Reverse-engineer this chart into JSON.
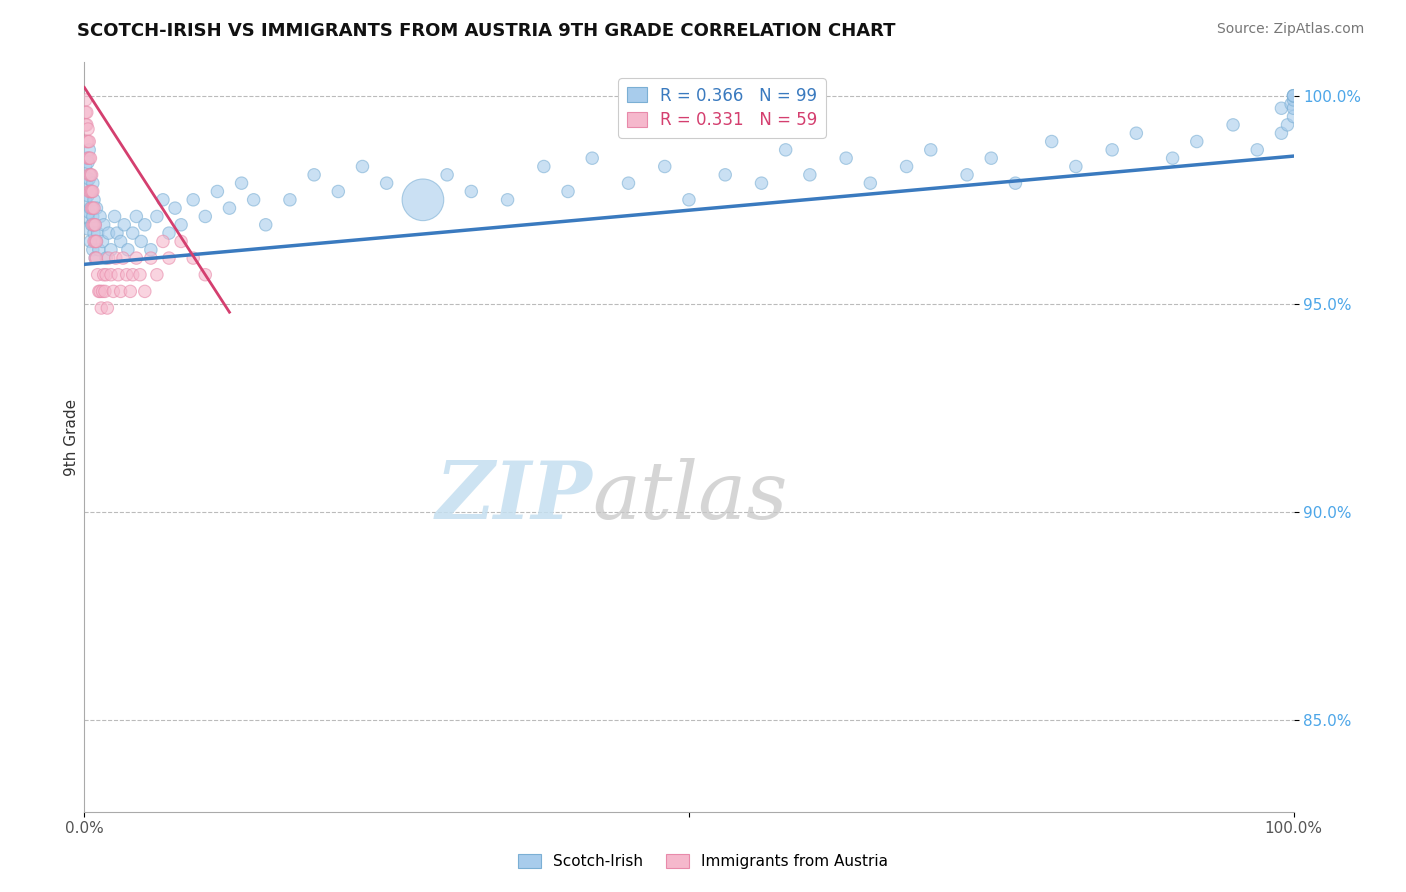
{
  "title": "SCOTCH-IRISH VS IMMIGRANTS FROM AUSTRIA 9TH GRADE CORRELATION CHART",
  "source": "Source: ZipAtlas.com",
  "ylabel": "9th Grade",
  "xlim": [
    0,
    1
  ],
  "ylim": [
    0.828,
    1.008
  ],
  "yticks": [
    0.85,
    0.9,
    0.95,
    1.0
  ],
  "ytick_labels": [
    "85.0%",
    "90.0%",
    "95.0%",
    "100.0%"
  ],
  "blue_R": 0.366,
  "blue_N": 99,
  "pink_R": 0.331,
  "pink_N": 59,
  "blue_color": "#a8ccec",
  "blue_edge_color": "#7bafd4",
  "blue_line_color": "#3a7abf",
  "pink_color": "#f5b8cc",
  "pink_edge_color": "#e88aaa",
  "pink_line_color": "#d43f6f",
  "blue_label": "Scotch-Irish",
  "pink_label": "Immigrants from Austria",
  "background_color": "#ffffff",
  "blue_x": [
    0.001,
    0.001,
    0.002,
    0.002,
    0.002,
    0.003,
    0.003,
    0.003,
    0.004,
    0.004,
    0.004,
    0.005,
    0.005,
    0.005,
    0.006,
    0.006,
    0.007,
    0.007,
    0.007,
    0.008,
    0.008,
    0.009,
    0.009,
    0.01,
    0.01,
    0.011,
    0.012,
    0.013,
    0.015,
    0.016,
    0.018,
    0.02,
    0.022,
    0.025,
    0.027,
    0.03,
    0.033,
    0.036,
    0.04,
    0.043,
    0.047,
    0.05,
    0.055,
    0.06,
    0.065,
    0.07,
    0.075,
    0.08,
    0.09,
    0.1,
    0.11,
    0.12,
    0.13,
    0.14,
    0.15,
    0.17,
    0.19,
    0.21,
    0.23,
    0.25,
    0.28,
    0.3,
    0.32,
    0.35,
    0.38,
    0.4,
    0.42,
    0.45,
    0.48,
    0.5,
    0.53,
    0.56,
    0.58,
    0.6,
    0.63,
    0.65,
    0.68,
    0.7,
    0.73,
    0.75,
    0.77,
    0.8,
    0.82,
    0.85,
    0.87,
    0.9,
    0.92,
    0.95,
    0.97,
    0.99,
    0.99,
    0.995,
    0.998,
    1.0,
    1.0,
    1.0,
    1.0,
    1.0,
    1.0
  ],
  "blue_y": [
    0.975,
    0.983,
    0.971,
    0.979,
    0.985,
    0.968,
    0.976,
    0.984,
    0.972,
    0.98,
    0.987,
    0.965,
    0.973,
    0.981,
    0.969,
    0.977,
    0.963,
    0.971,
    0.979,
    0.967,
    0.975,
    0.961,
    0.969,
    0.965,
    0.973,
    0.967,
    0.963,
    0.971,
    0.965,
    0.969,
    0.961,
    0.967,
    0.963,
    0.971,
    0.967,
    0.965,
    0.969,
    0.963,
    0.967,
    0.971,
    0.965,
    0.969,
    0.963,
    0.971,
    0.975,
    0.967,
    0.973,
    0.969,
    0.975,
    0.971,
    0.977,
    0.973,
    0.979,
    0.975,
    0.969,
    0.975,
    0.981,
    0.977,
    0.983,
    0.979,
    0.975,
    0.981,
    0.977,
    0.975,
    0.983,
    0.977,
    0.985,
    0.979,
    0.983,
    0.975,
    0.981,
    0.979,
    0.987,
    0.981,
    0.985,
    0.979,
    0.983,
    0.987,
    0.981,
    0.985,
    0.979,
    0.989,
    0.983,
    0.987,
    0.991,
    0.985,
    0.989,
    0.993,
    0.987,
    0.991,
    0.997,
    0.993,
    0.998,
    0.995,
    0.997,
    0.999,
    1.0,
    1.0,
    1.0
  ],
  "blue_sizes": [
    80,
    80,
    80,
    80,
    80,
    80,
    80,
    80,
    80,
    80,
    80,
    80,
    80,
    80,
    80,
    80,
    80,
    80,
    80,
    80,
    80,
    80,
    80,
    80,
    80,
    80,
    80,
    80,
    80,
    80,
    80,
    80,
    80,
    80,
    80,
    80,
    80,
    80,
    80,
    80,
    80,
    80,
    80,
    80,
    80,
    80,
    80,
    80,
    80,
    80,
    80,
    80,
    80,
    80,
    80,
    80,
    80,
    80,
    80,
    80,
    80,
    80,
    80,
    80,
    80,
    80,
    80,
    80,
    80,
    80,
    80,
    80,
    80,
    80,
    80,
    80,
    80,
    80,
    80,
    80,
    80,
    80,
    80,
    80,
    80,
    80,
    80,
    80,
    80,
    80,
    80,
    80,
    80,
    80,
    80,
    80,
    80,
    80,
    80
  ],
  "blue_big_idx": 60,
  "blue_big_size": 900,
  "pink_x": [
    0.001,
    0.001,
    0.001,
    0.002,
    0.002,
    0.002,
    0.003,
    0.003,
    0.003,
    0.004,
    0.004,
    0.004,
    0.004,
    0.005,
    0.005,
    0.005,
    0.006,
    0.006,
    0.006,
    0.007,
    0.007,
    0.007,
    0.008,
    0.008,
    0.008,
    0.009,
    0.009,
    0.009,
    0.01,
    0.01,
    0.011,
    0.012,
    0.013,
    0.014,
    0.015,
    0.016,
    0.017,
    0.018,
    0.019,
    0.02,
    0.022,
    0.024,
    0.026,
    0.028,
    0.03,
    0.032,
    0.035,
    0.038,
    0.04,
    0.043,
    0.046,
    0.05,
    0.055,
    0.06,
    0.065,
    0.07,
    0.08,
    0.09,
    0.1
  ],
  "pink_y": [
    0.999,
    0.996,
    0.993,
    0.996,
    0.993,
    0.989,
    0.992,
    0.989,
    0.985,
    0.989,
    0.985,
    0.981,
    0.977,
    0.985,
    0.981,
    0.977,
    0.981,
    0.977,
    0.973,
    0.977,
    0.973,
    0.969,
    0.973,
    0.969,
    0.965,
    0.969,
    0.965,
    0.961,
    0.965,
    0.961,
    0.957,
    0.953,
    0.953,
    0.949,
    0.953,
    0.957,
    0.953,
    0.957,
    0.949,
    0.961,
    0.957,
    0.953,
    0.961,
    0.957,
    0.953,
    0.961,
    0.957,
    0.953,
    0.957,
    0.961,
    0.957,
    0.953,
    0.961,
    0.957,
    0.965,
    0.961,
    0.965,
    0.961,
    0.957
  ],
  "pink_sizes": [
    80,
    80,
    80,
    80,
    80,
    80,
    80,
    80,
    80,
    80,
    80,
    80,
    80,
    80,
    80,
    80,
    80,
    80,
    80,
    80,
    80,
    80,
    80,
    80,
    80,
    80,
    80,
    80,
    80,
    80,
    80,
    80,
    80,
    80,
    80,
    80,
    80,
    80,
    80,
    80,
    80,
    80,
    80,
    80,
    80,
    80,
    80,
    80,
    80,
    80,
    80,
    80,
    80,
    80,
    80,
    80,
    80,
    80,
    80
  ],
  "blue_line_x": [
    0,
    1
  ],
  "blue_line_y": [
    0.9595,
    0.9855
  ],
  "pink_line_x": [
    0,
    0.12
  ],
  "pink_line_y": [
    1.002,
    0.948
  ]
}
